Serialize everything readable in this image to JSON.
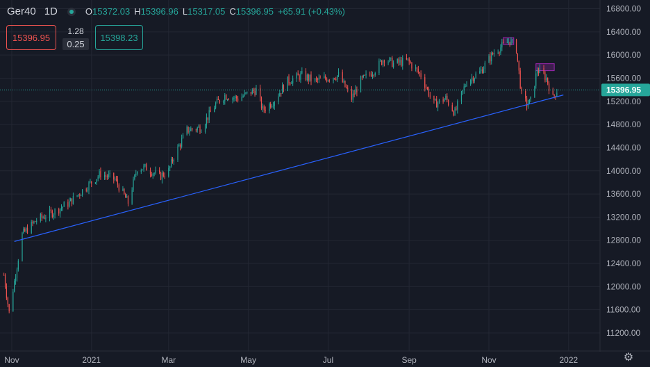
{
  "header": {
    "symbol": "Ger40",
    "timeframe": "1D",
    "ohlc": [
      {
        "label": "O",
        "value": "15372.03"
      },
      {
        "label": "H",
        "value": "15396.96"
      },
      {
        "label": "L",
        "value": "15317.05"
      },
      {
        "label": "C",
        "value": "15396.95"
      },
      {
        "label": "",
        "value": "+65.91 (+0.43%)"
      }
    ]
  },
  "trade_panel": {
    "sell_price": "15396.95",
    "quantity": "1.28",
    "spread": "0.25",
    "buy_price": "15398.23"
  },
  "colors": {
    "background": "#161a25",
    "up": "#26a69a",
    "down": "#ef5350",
    "trendline": "#2962ff",
    "highlight": "#9c27b0",
    "grid": "#232733",
    "axis_text": "#b2b5be"
  },
  "chart_data": {
    "type": "candlestick",
    "y_axis": {
      "min": 10900,
      "max": 16950,
      "ticks": [
        16800,
        16400,
        16000,
        15600,
        15200,
        14800,
        14400,
        14000,
        13600,
        13200,
        12800,
        12400,
        12000,
        11600,
        11200
      ],
      "tick_labels": [
        "16800.00",
        "16400.00",
        "16000.00",
        "15600.00",
        "15200.00",
        "14800.00",
        "14400.00",
        "14000.00",
        "13600.00",
        "13200.00",
        "12800.00",
        "12400.00",
        "12000.00",
        "11600.00",
        "11200.00"
      ]
    },
    "x_axis": {
      "start": "2020-10-23",
      "end": "2022-01-25",
      "labels": [
        {
          "date": "2020-11-01",
          "text": "Nov"
        },
        {
          "date": "2021-01-01",
          "text": "2021"
        },
        {
          "date": "2021-03-01",
          "text": "Mar"
        },
        {
          "date": "2021-05-01",
          "text": "May"
        },
        {
          "date": "2021-07-01",
          "text": "Jul"
        },
        {
          "date": "2021-09-01",
          "text": "Sep"
        },
        {
          "date": "2021-11-01",
          "text": "Nov"
        },
        {
          "date": "2022-01-01",
          "text": "2022"
        }
      ]
    },
    "current_price": 15396.95,
    "current_price_label": "15396.95",
    "price_path": [
      [
        "2020-10-26",
        12200
      ],
      [
        "2020-10-30",
        11550
      ],
      [
        "2020-11-09",
        12900
      ],
      [
        "2020-11-20",
        13150
      ],
      [
        "2020-12-04",
        13300
      ],
      [
        "2020-12-15",
        13450
      ],
      [
        "2021-01-08",
        13950
      ],
      [
        "2021-01-19",
        13850
      ],
      [
        "2021-01-29",
        13450
      ],
      [
        "2021-02-05",
        14050
      ],
      [
        "2021-02-12",
        14050
      ],
      [
        "2021-02-22",
        13900
      ],
      [
        "2021-03-01",
        14000
      ],
      [
        "2021-03-05",
        14250
      ],
      [
        "2021-03-15",
        14700
      ],
      [
        "2021-03-26",
        14750
      ],
      [
        "2021-04-06",
        15150
      ],
      [
        "2021-04-13",
        15300
      ],
      [
        "2021-04-23",
        15250
      ],
      [
        "2021-05-07",
        15400
      ],
      [
        "2021-05-12",
        15050
      ],
      [
        "2021-05-20",
        15200
      ],
      [
        "2021-05-31",
        15550
      ],
      [
        "2021-06-11",
        15650
      ],
      [
        "2021-06-21",
        15550
      ],
      [
        "2021-06-30",
        15600
      ],
      [
        "2021-07-09",
        15650
      ],
      [
        "2021-07-19",
        15250
      ],
      [
        "2021-07-26",
        15550
      ],
      [
        "2021-08-06",
        15750
      ],
      [
        "2021-08-13",
        15950
      ],
      [
        "2021-08-20",
        15850
      ],
      [
        "2021-08-31",
        15900
      ],
      [
        "2021-09-10",
        15650
      ],
      [
        "2021-09-20",
        15150
      ],
      [
        "2021-09-29",
        15250
      ],
      [
        "2021-10-06",
        15000
      ],
      [
        "2021-10-15",
        15550
      ],
      [
        "2021-10-25",
        15700
      ],
      [
        "2021-11-05",
        16050
      ],
      [
        "2021-11-17",
        16250
      ],
      [
        "2021-11-22",
        16100
      ],
      [
        "2021-11-26",
        15300
      ],
      [
        "2021-11-30",
        15150
      ],
      [
        "2021-12-03",
        15200
      ],
      [
        "2021-12-08",
        15750
      ],
      [
        "2021-12-15",
        15600
      ],
      [
        "2021-12-20",
        15250
      ],
      [
        "2021-12-23",
        15390
      ]
    ],
    "trendline": [
      [
        "2020-11-03",
        12780
      ],
      [
        "2021-12-28",
        15310
      ]
    ],
    "highlight_zones": [
      {
        "from": "2021-11-12",
        "to": "2021-11-20",
        "low": 16180,
        "high": 16300
      },
      {
        "from": "2021-12-07",
        "to": "2021-12-21",
        "low": 15730,
        "high": 15850
      }
    ]
  }
}
